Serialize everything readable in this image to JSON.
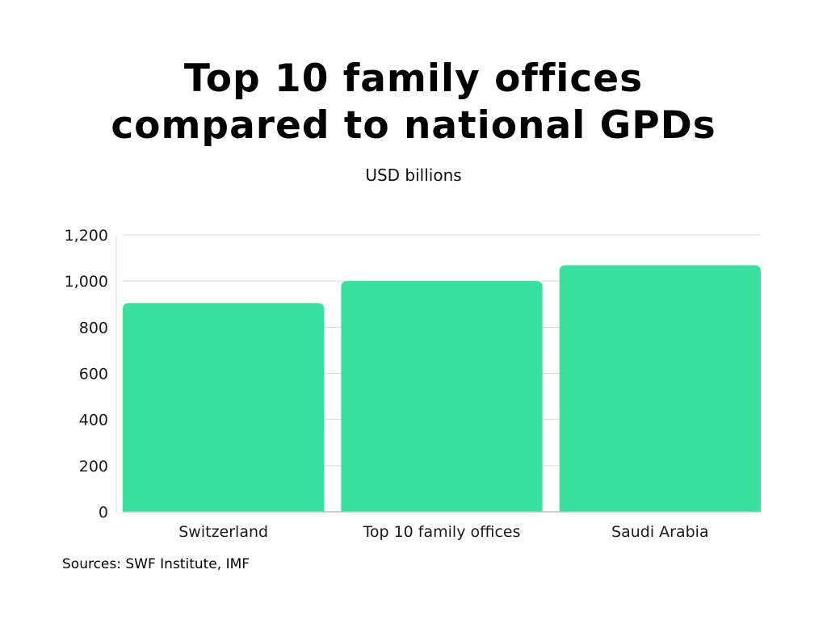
{
  "title_lines": [
    "Top 10 family offices",
    "compared to national GPDs"
  ],
  "subtitle": "USD billions",
  "source": "Sources: SWF Institute, IMF",
  "colors": {
    "bar": "#3ae09d",
    "grid": "#d9d9d9",
    "axis": "#bfbfbf",
    "text": "#1a1a1a"
  },
  "chart_data": {
    "type": "bar",
    "title": "Top 10 family offices compared to national GPDs",
    "subtitle": "USD billions",
    "categories": [
      "Switzerland",
      "Top 10 family offices",
      "Saudi Arabia"
    ],
    "values": [
      905,
      1000,
      1069
    ],
    "ylim": [
      0,
      1200
    ],
    "yticks": [
      0,
      200,
      400,
      600,
      800,
      1000,
      1200
    ],
    "ytick_labels": [
      "0",
      "200",
      "400",
      "600",
      "800",
      "1,000",
      "1,200"
    ],
    "grid": true,
    "legend": "none"
  }
}
